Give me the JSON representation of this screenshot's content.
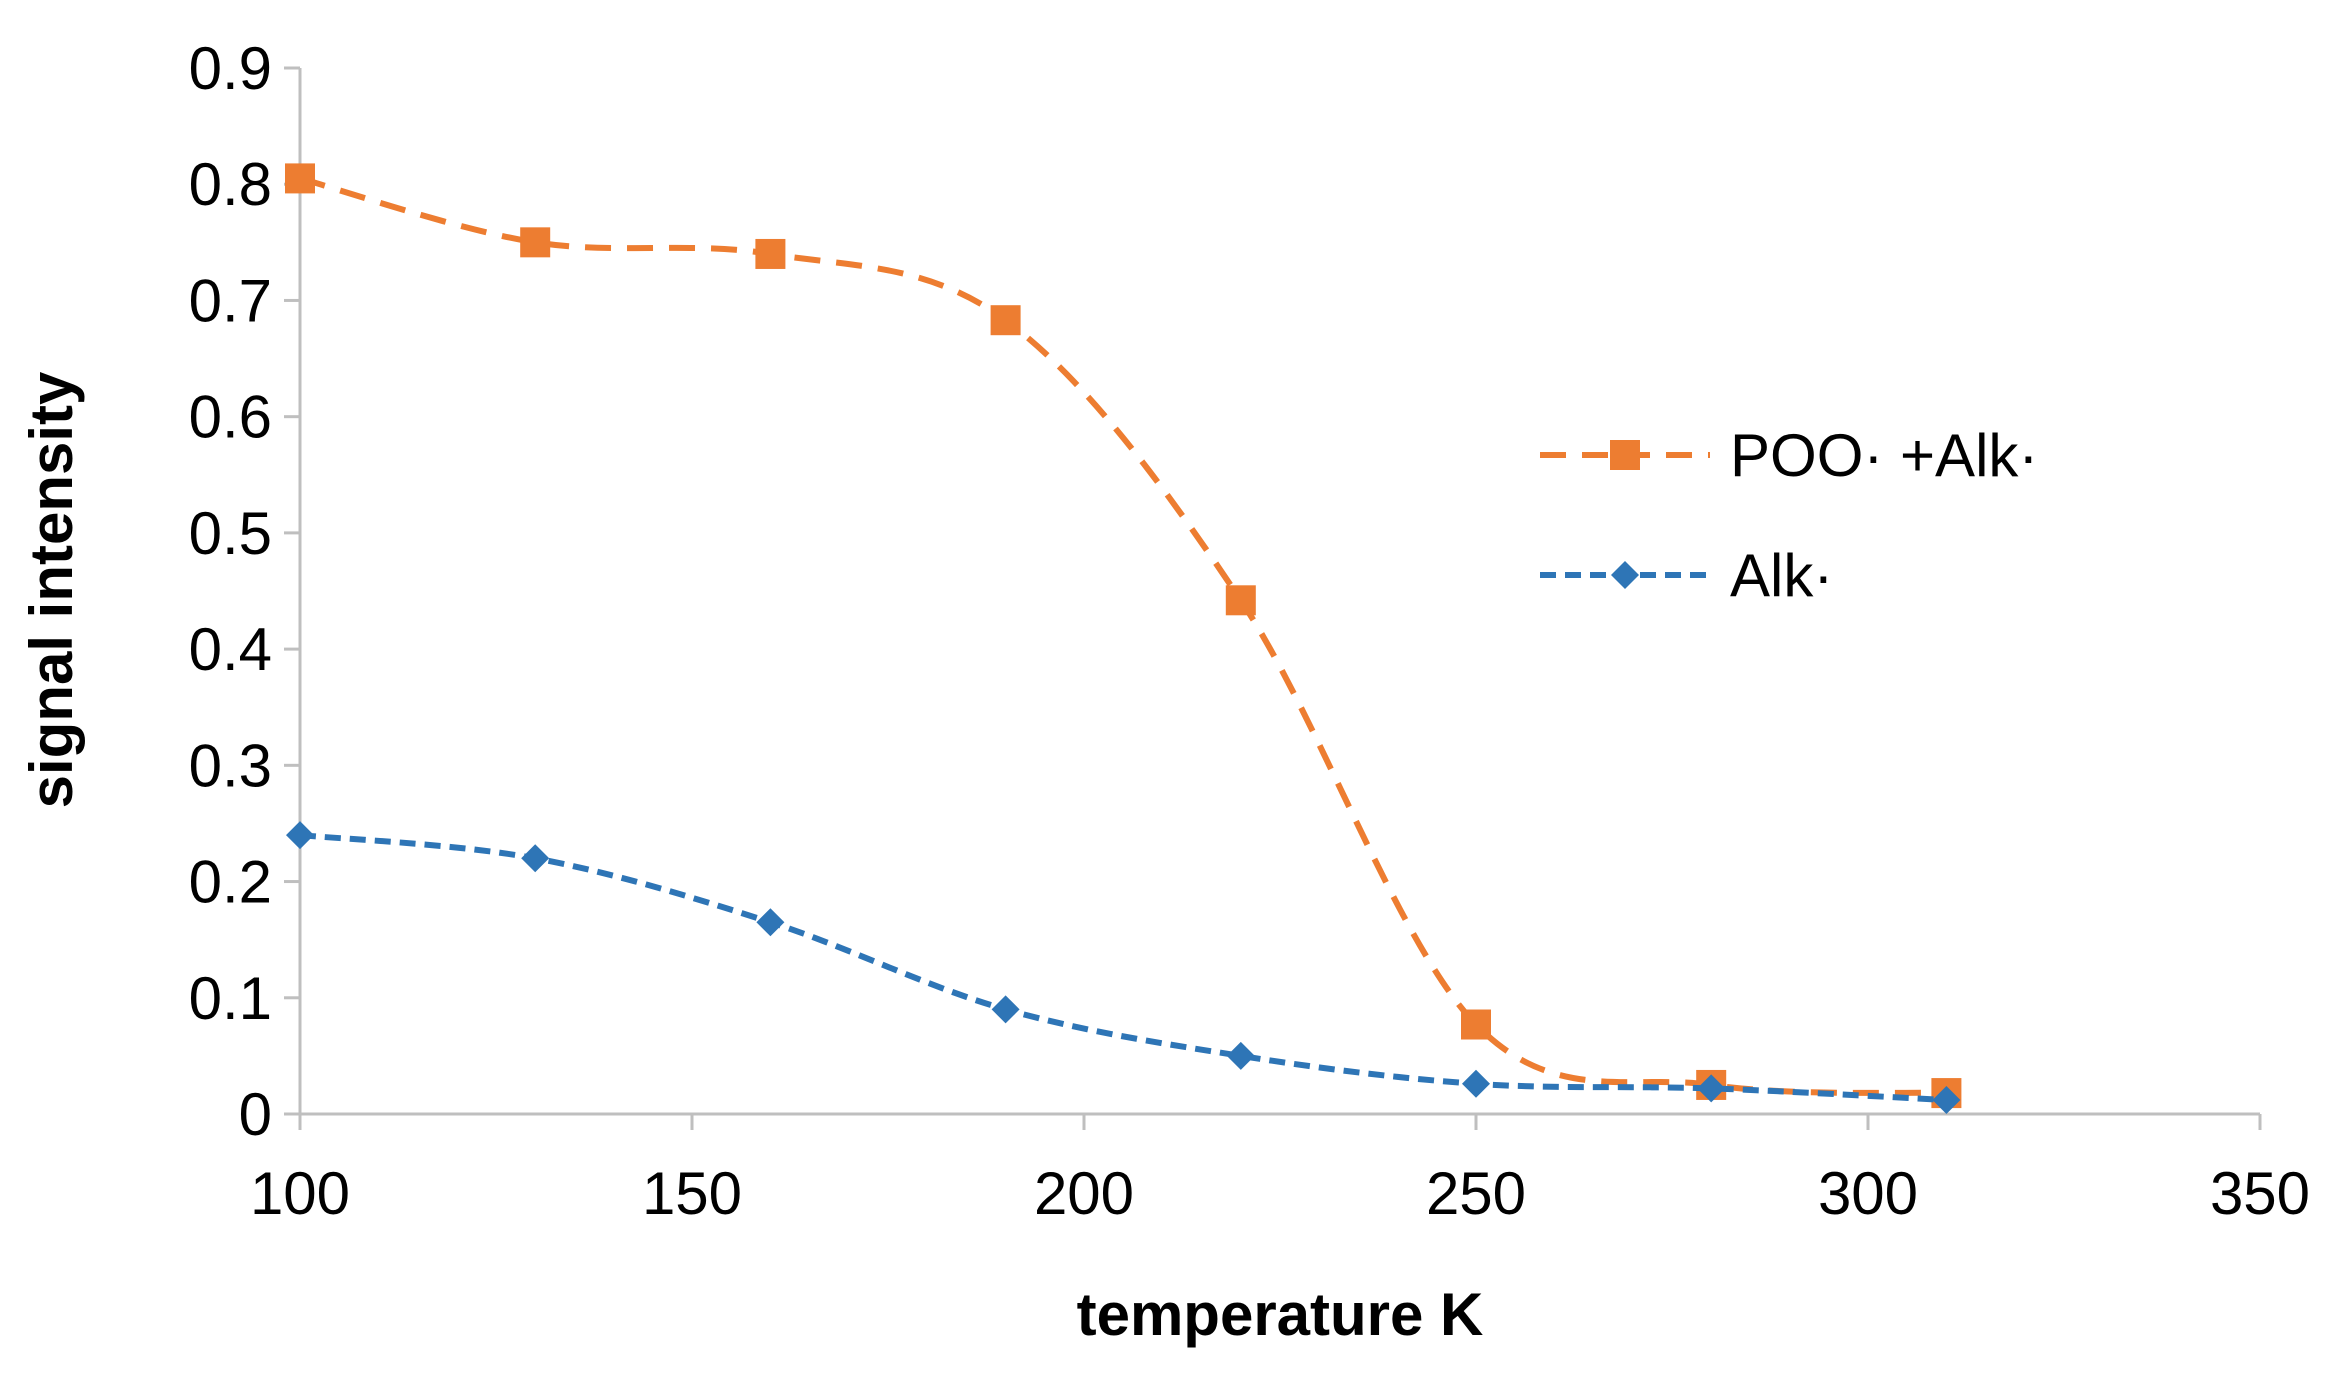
{
  "chart_data": {
    "type": "line",
    "title": "",
    "xlabel": "temperature K",
    "ylabel": "signal intensity",
    "xlim": [
      100,
      350
    ],
    "ylim": [
      0,
      0.9
    ],
    "x_ticks": [
      "100",
      "150",
      "200",
      "250",
      "300",
      "350"
    ],
    "y_ticks": [
      "0",
      "0.1",
      "0.2",
      "0.3",
      "0.4",
      "0.5",
      "0.6",
      "0.7",
      "0.8",
      "0.9"
    ],
    "grid": false,
    "legend_position": "right",
    "series": [
      {
        "name": "POO· +Alk·",
        "color": "#ED7D31",
        "marker": "square",
        "line_style": "dashed",
        "x": [
          100,
          130,
          160,
          190,
          220,
          250,
          280,
          310
        ],
        "y": [
          0.805,
          0.75,
          0.74,
          0.683,
          0.442,
          0.077,
          0.025,
          0.018
        ]
      },
      {
        "name": "Alk·",
        "color": "#2E75B6",
        "marker": "diamond",
        "line_style": "dashed",
        "x": [
          100,
          130,
          160,
          190,
          220,
          250,
          280,
          310
        ],
        "y": [
          0.24,
          0.22,
          0.165,
          0.09,
          0.05,
          0.026,
          0.022,
          0.012
        ]
      }
    ]
  }
}
